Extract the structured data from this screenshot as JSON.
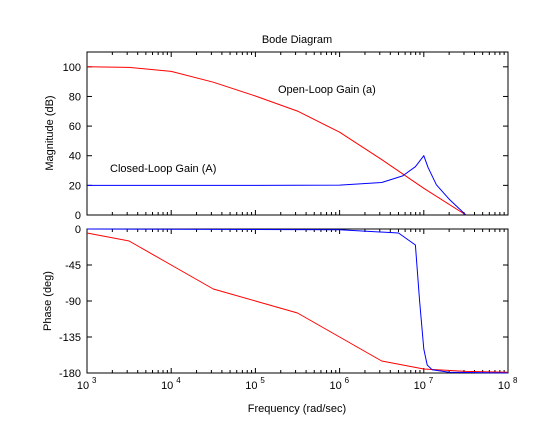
{
  "chart_data": [
    {
      "type": "line",
      "panel": "magnitude",
      "title": "Bode Diagram",
      "xlabel": "",
      "ylabel": "Magnitude (dB)",
      "xscale": "log",
      "xlim": [
        1000,
        100000000
      ],
      "ylim": [
        0,
        110
      ],
      "yticks": [
        "0",
        "20",
        "40",
        "60",
        "80",
        "100"
      ],
      "grid": false,
      "annotations": [
        "Open-Loop Gain (a)",
        "Closed-Loop Gain (A)"
      ],
      "series": [
        {
          "color": "#ff0000",
          "x": [
            1000,
            3162,
            10000,
            31623,
            100000,
            316228,
            1000000,
            3162278,
            10000000,
            31622777
          ],
          "values": [
            100,
            99.6,
            96.9,
            89.6,
            80.3,
            70.1,
            55.9,
            37.4,
            18.0,
            0
          ]
        },
        {
          "color": "#0000ff",
          "x": [
            1000,
            100000,
            1000000,
            3162278,
            5623413,
            7943282,
            10000000,
            11220185,
            14125375,
            19952623,
            31622777
          ],
          "values": [
            20,
            20,
            20.2,
            21.9,
            26.4,
            32.6,
            40,
            32.2,
            20.4,
            10.7,
            0
          ]
        }
      ]
    },
    {
      "type": "line",
      "panel": "phase",
      "title": "",
      "xlabel": "Frequency  (rad/sec)",
      "ylabel": "Phase (deg)",
      "xscale": "log",
      "xlim": [
        1000,
        100000000
      ],
      "ylim": [
        -180,
        0
      ],
      "yticks": [
        "0",
        "-45",
        "-90",
        "-135",
        "-180"
      ],
      "xticks": [
        "10",
        "10",
        "10",
        "10",
        "10",
        "10"
      ],
      "xtick_exponents": [
        "3",
        "4",
        "5",
        "6",
        "7",
        "8"
      ],
      "grid": false,
      "series": [
        {
          "color": "#ff0000",
          "x": [
            1000,
            3162,
            10000,
            31623,
            100000,
            316228,
            1000000,
            3162278,
            10000000,
            31622777,
            100000000
          ],
          "values": [
            -5,
            -15,
            -45,
            -75,
            -90,
            -105,
            -135,
            -165,
            -175,
            -178,
            -179
          ]
        },
        {
          "color": "#0000ff",
          "x": [
            1000,
            1000000,
            5011872,
            7943282,
            8912509,
            10000000,
            10964782,
            12589254,
            19952623,
            100000000
          ],
          "values": [
            0,
            -1,
            -5,
            -20,
            -90,
            -150,
            -170,
            -176,
            -179,
            -180
          ]
        }
      ]
    }
  ]
}
